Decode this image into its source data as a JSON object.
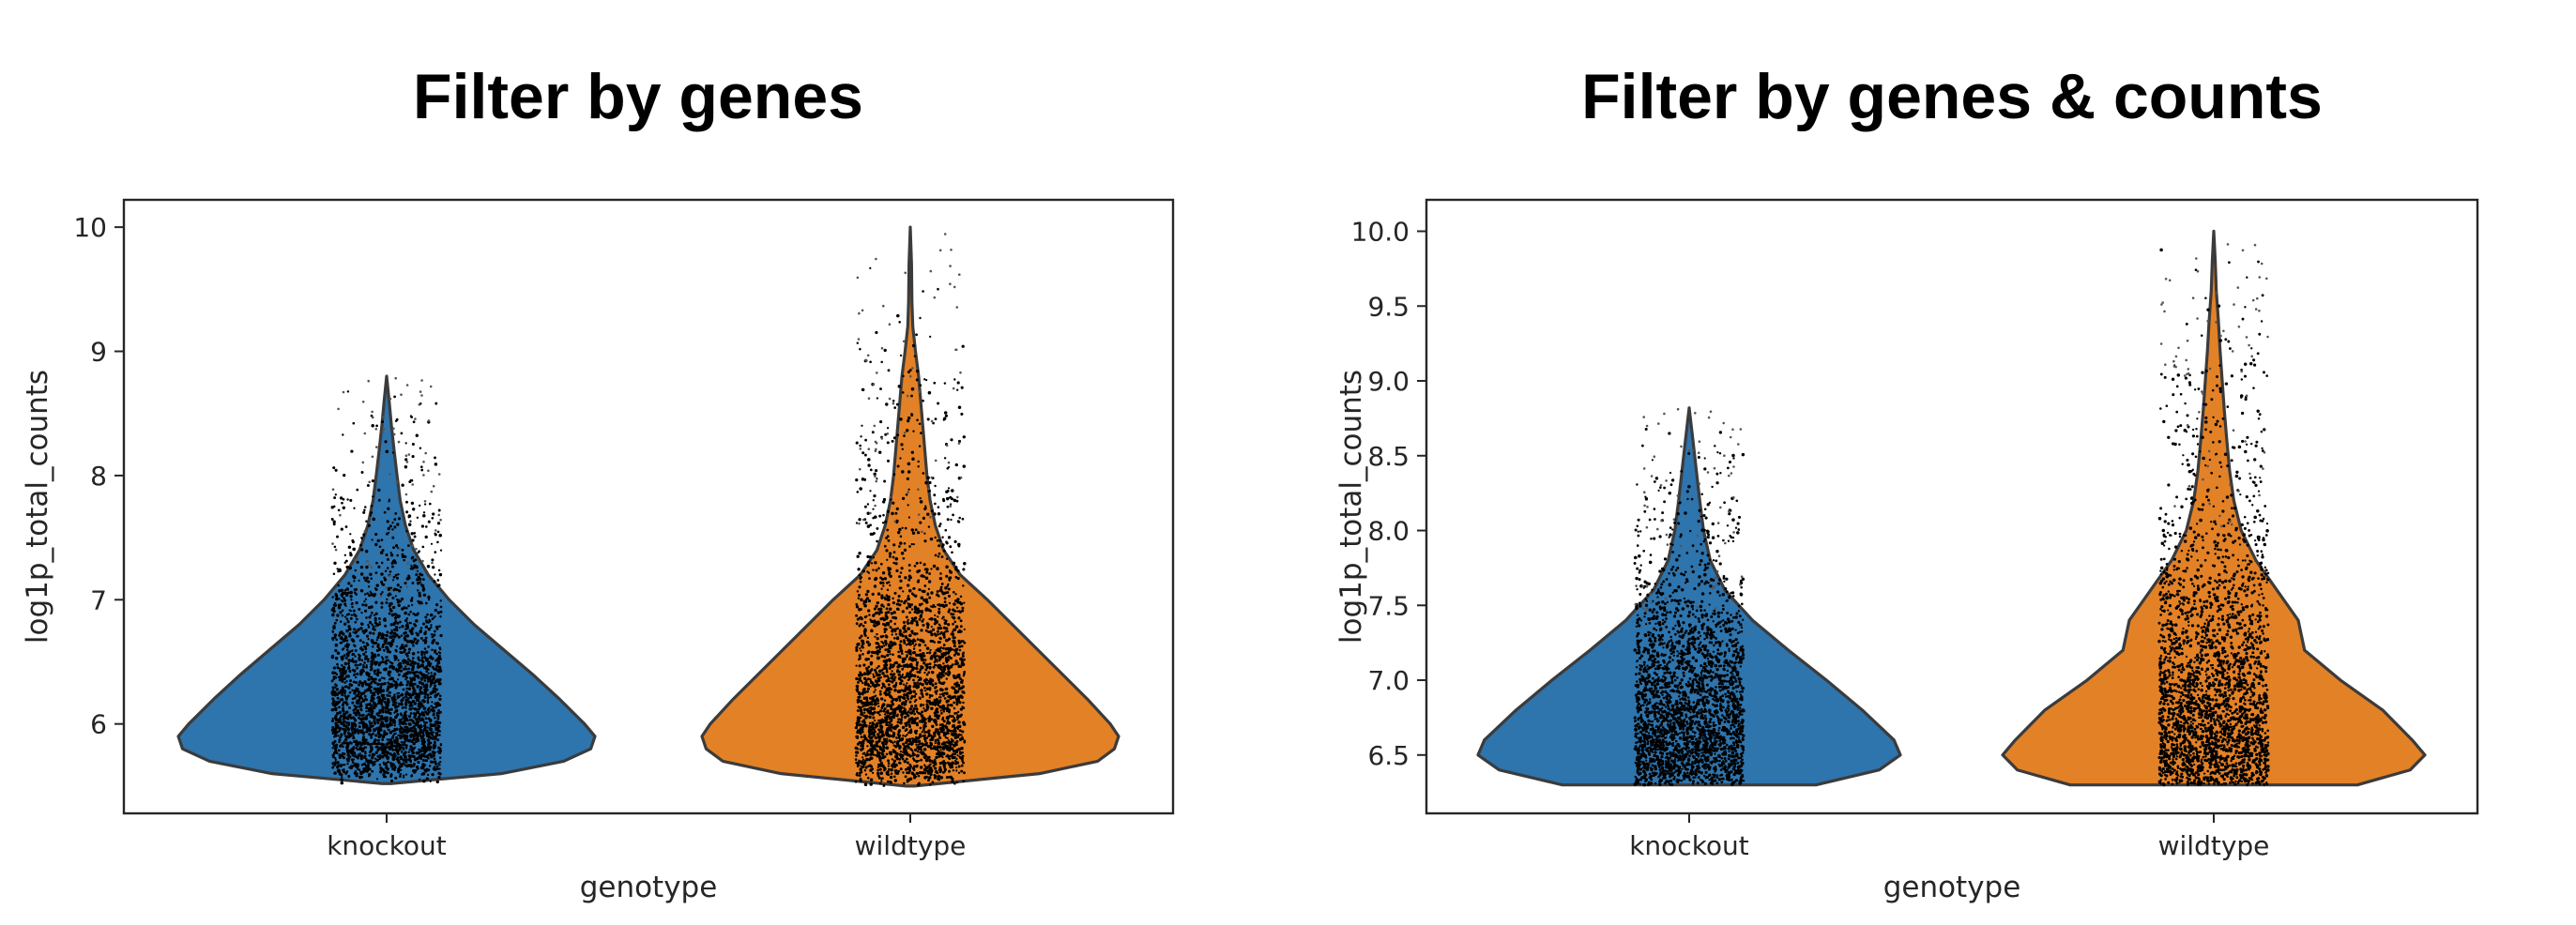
{
  "chart_data": [
    {
      "type": "violin",
      "title": "Filter by genes",
      "xlabel": "genotype",
      "ylabel": "log1p_total_counts",
      "categories": [
        "knockout",
        "wildtype"
      ],
      "ylim": [
        5.28,
        10.22
      ],
      "yticks": [
        6,
        7,
        8,
        9,
        10
      ],
      "ytick_labels": [
        "6",
        "7",
        "8",
        "9",
        "10"
      ],
      "grid": false,
      "series": [
        {
          "category": "knockout",
          "color": "#2e74ad",
          "min": 5.52,
          "max": 8.8,
          "density": [
            [
              5.52,
              0.02
            ],
            [
              5.6,
              0.55
            ],
            [
              5.7,
              0.85
            ],
            [
              5.8,
              0.98
            ],
            [
              5.9,
              1.0
            ],
            [
              6.0,
              0.95
            ],
            [
              6.2,
              0.83
            ],
            [
              6.4,
              0.7
            ],
            [
              6.6,
              0.56
            ],
            [
              6.8,
              0.42
            ],
            [
              7.0,
              0.3
            ],
            [
              7.2,
              0.2
            ],
            [
              7.4,
              0.13
            ],
            [
              7.6,
              0.09
            ],
            [
              7.8,
              0.065
            ],
            [
              8.0,
              0.05
            ],
            [
              8.2,
              0.036
            ],
            [
              8.4,
              0.023
            ],
            [
              8.6,
              0.012
            ],
            [
              8.8,
              0.0
            ]
          ]
        },
        {
          "category": "wildtype",
          "color": "#e38127",
          "min": 5.5,
          "max": 10.0,
          "density": [
            [
              5.5,
              0.02
            ],
            [
              5.6,
              0.62
            ],
            [
              5.7,
              0.9
            ],
            [
              5.8,
              0.98
            ],
            [
              5.9,
              1.0
            ],
            [
              6.0,
              0.96
            ],
            [
              6.2,
              0.85
            ],
            [
              6.4,
              0.73
            ],
            [
              6.6,
              0.61
            ],
            [
              6.8,
              0.49
            ],
            [
              7.0,
              0.37
            ],
            [
              7.2,
              0.24
            ],
            [
              7.4,
              0.16
            ],
            [
              7.6,
              0.12
            ],
            [
              7.8,
              0.095
            ],
            [
              8.0,
              0.08
            ],
            [
              8.2,
              0.07
            ],
            [
              8.4,
              0.06
            ],
            [
              8.6,
              0.05
            ],
            [
              8.8,
              0.04
            ],
            [
              9.0,
              0.025
            ],
            [
              9.2,
              0.012
            ],
            [
              9.4,
              0.008
            ],
            [
              9.7,
              0.006
            ],
            [
              10.0,
              0.0
            ]
          ]
        }
      ]
    },
    {
      "type": "violin",
      "title": "Filter by genes & counts",
      "xlabel": "genotype",
      "ylabel": "log1p_total_counts",
      "categories": [
        "knockout",
        "wildtype"
      ],
      "ylim": [
        6.11,
        10.21
      ],
      "yticks": [
        6.5,
        7.0,
        7.5,
        8.0,
        8.5,
        9.0,
        9.5,
        10.0
      ],
      "ytick_labels": [
        "6.5",
        "7.0",
        "7.5",
        "8.0",
        "8.5",
        "9.0",
        "9.5",
        "10.0"
      ],
      "grid": false,
      "series": [
        {
          "category": "knockout",
          "color": "#2e74ad",
          "min": 6.3,
          "max": 8.82,
          "density": [
            [
              6.3,
              0.6
            ],
            [
              6.4,
              0.9
            ],
            [
              6.5,
              1.0
            ],
            [
              6.6,
              0.97
            ],
            [
              6.8,
              0.82
            ],
            [
              7.0,
              0.65
            ],
            [
              7.2,
              0.47
            ],
            [
              7.4,
              0.3
            ],
            [
              7.6,
              0.17
            ],
            [
              7.8,
              0.1
            ],
            [
              8.0,
              0.068
            ],
            [
              8.2,
              0.05
            ],
            [
              8.4,
              0.034
            ],
            [
              8.6,
              0.018
            ],
            [
              8.82,
              0.0
            ]
          ]
        },
        {
          "category": "wildtype",
          "color": "#e38127",
          "min": 6.3,
          "max": 10.0,
          "density": [
            [
              6.3,
              0.68
            ],
            [
              6.4,
              0.93
            ],
            [
              6.5,
              1.0
            ],
            [
              6.6,
              0.94
            ],
            [
              6.8,
              0.8
            ],
            [
              7.0,
              0.6
            ],
            [
              7.2,
              0.43
            ],
            [
              7.4,
              0.4
            ],
            [
              7.6,
              0.3
            ],
            [
              7.8,
              0.2
            ],
            [
              8.0,
              0.13
            ],
            [
              8.2,
              0.095
            ],
            [
              8.4,
              0.075
            ],
            [
              8.6,
              0.062
            ],
            [
              8.8,
              0.05
            ],
            [
              9.0,
              0.04
            ],
            [
              9.2,
              0.03
            ],
            [
              9.4,
              0.022
            ],
            [
              9.6,
              0.012
            ],
            [
              9.8,
              0.007
            ],
            [
              10.0,
              0.0
            ]
          ]
        }
      ]
    }
  ]
}
